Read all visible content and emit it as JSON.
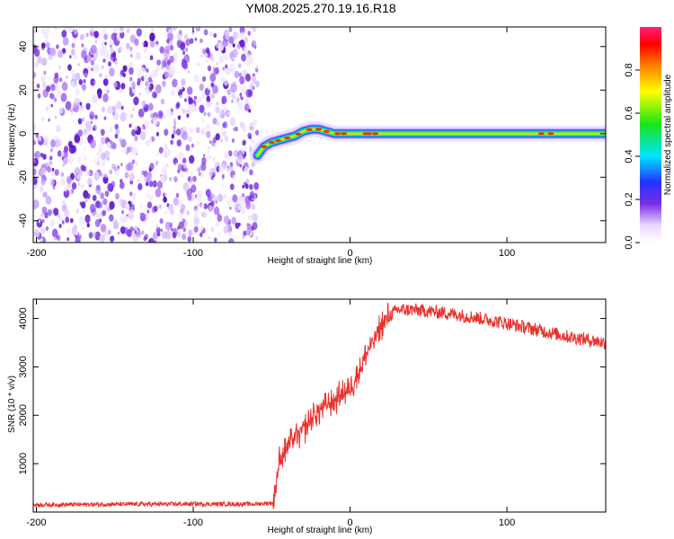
{
  "title": "YM08.2025.270.19.16.R18",
  "chart_data": [
    {
      "type": "heatmap",
      "name": "spectrogram",
      "xlabel": "Height of straight line (km)",
      "ylabel": "Frequency (Hz)",
      "xlim": [
        -202,
        163
      ],
      "ylim": [
        -50,
        49
      ],
      "xticks": [
        -200,
        -100,
        0,
        100
      ],
      "xtick_labels": [
        "-200",
        "-100",
        "0",
        "100"
      ],
      "yticks": [
        -40,
        -20,
        0,
        20,
        40
      ],
      "ytick_labels": [
        "-40",
        "-20",
        "0",
        "20",
        "40"
      ],
      "noise_region_x": [
        -202,
        -59
      ],
      "signal_start_x": -59,
      "signal_track": {
        "x": [
          -59,
          -55,
          -50,
          -45,
          -40,
          -35,
          -30,
          -25,
          -20,
          -15,
          -10,
          0,
          20,
          60,
          100,
          140,
          163
        ],
        "frequency": [
          -10,
          -6,
          -4,
          -3,
          -2,
          -1,
          1,
          2,
          2,
          1,
          0,
          0,
          0,
          0,
          0,
          0,
          0
        ]
      }
    },
    {
      "type": "colorbar",
      "name": "amplitude-colorbar",
      "label": "Normalized spectral amplitude",
      "range": [
        0,
        1
      ],
      "ticks": [
        0.0,
        0.2,
        0.4,
        0.6,
        0.8
      ],
      "tick_labels": [
        "0.0",
        "0.2",
        "0.4",
        "0.6",
        "0.8"
      ]
    },
    {
      "type": "line",
      "name": "snr",
      "xlabel": "Height of straight line (km)",
      "ylabel": "SNR (10 * v/v)",
      "xlim": [
        -202,
        163
      ],
      "ylim": [
        0,
        4400
      ],
      "xticks": [
        -200,
        -100,
        0,
        100
      ],
      "xtick_labels": [
        "-200",
        "-100",
        "0",
        "100"
      ],
      "yticks": [
        1000,
        2000,
        3000,
        4000
      ],
      "ytick_labels": [
        "1000",
        "2000",
        "3000",
        "4000"
      ],
      "color": "#e8322c",
      "x": [
        -202,
        -150,
        -100,
        -60,
        -49,
        -45,
        -40,
        -35,
        -30,
        -25,
        -20,
        -15,
        -10,
        -5,
        0,
        5,
        10,
        15,
        20,
        25,
        30,
        40,
        60,
        80,
        100,
        120,
        140,
        163
      ],
      "y": [
        150,
        160,
        165,
        165,
        190,
        1050,
        1350,
        1550,
        1700,
        1900,
        2100,
        2200,
        2300,
        2450,
        2550,
        2850,
        3250,
        3550,
        3850,
        4050,
        4180,
        4180,
        4120,
        4020,
        3900,
        3760,
        3620,
        3500
      ]
    }
  ],
  "colors": {
    "noise_purple": "#7a2ee6",
    "signal_core": "#e8322c",
    "axis": "#000000"
  }
}
